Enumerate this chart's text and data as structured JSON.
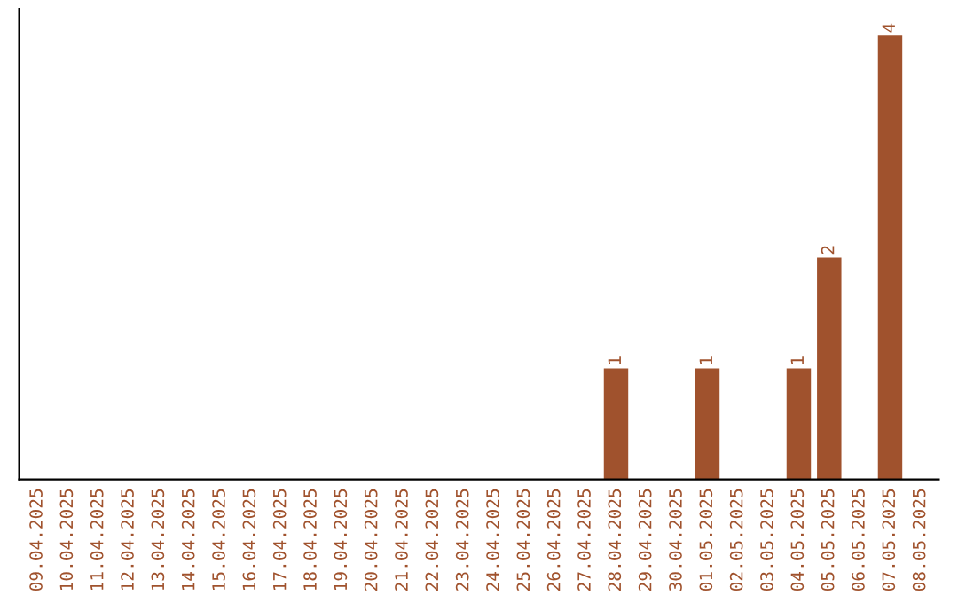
{
  "chart_data": {
    "type": "bar",
    "categories": [
      "09.04.2025",
      "10.04.2025",
      "11.04.2025",
      "12.04.2025",
      "13.04.2025",
      "14.04.2025",
      "15.04.2025",
      "16.04.2025",
      "17.04.2025",
      "18.04.2025",
      "19.04.2025",
      "20.04.2025",
      "21.04.2025",
      "22.04.2025",
      "23.04.2025",
      "24.04.2025",
      "25.04.2025",
      "26.04.2025",
      "27.04.2025",
      "28.04.2025",
      "29.04.2025",
      "30.04.2025",
      "01.05.2025",
      "02.05.2025",
      "03.05.2025",
      "04.05.2025",
      "05.05.2025",
      "06.05.2025",
      "07.05.2025",
      "08.05.2025"
    ],
    "values": [
      null,
      null,
      null,
      null,
      null,
      null,
      null,
      null,
      null,
      null,
      null,
      null,
      null,
      null,
      null,
      null,
      null,
      null,
      null,
      1,
      null,
      null,
      1,
      null,
      null,
      1,
      2,
      null,
      4,
      null
    ],
    "data_labels": true,
    "color": "#a0522d",
    "grid": false,
    "legend": false
  }
}
